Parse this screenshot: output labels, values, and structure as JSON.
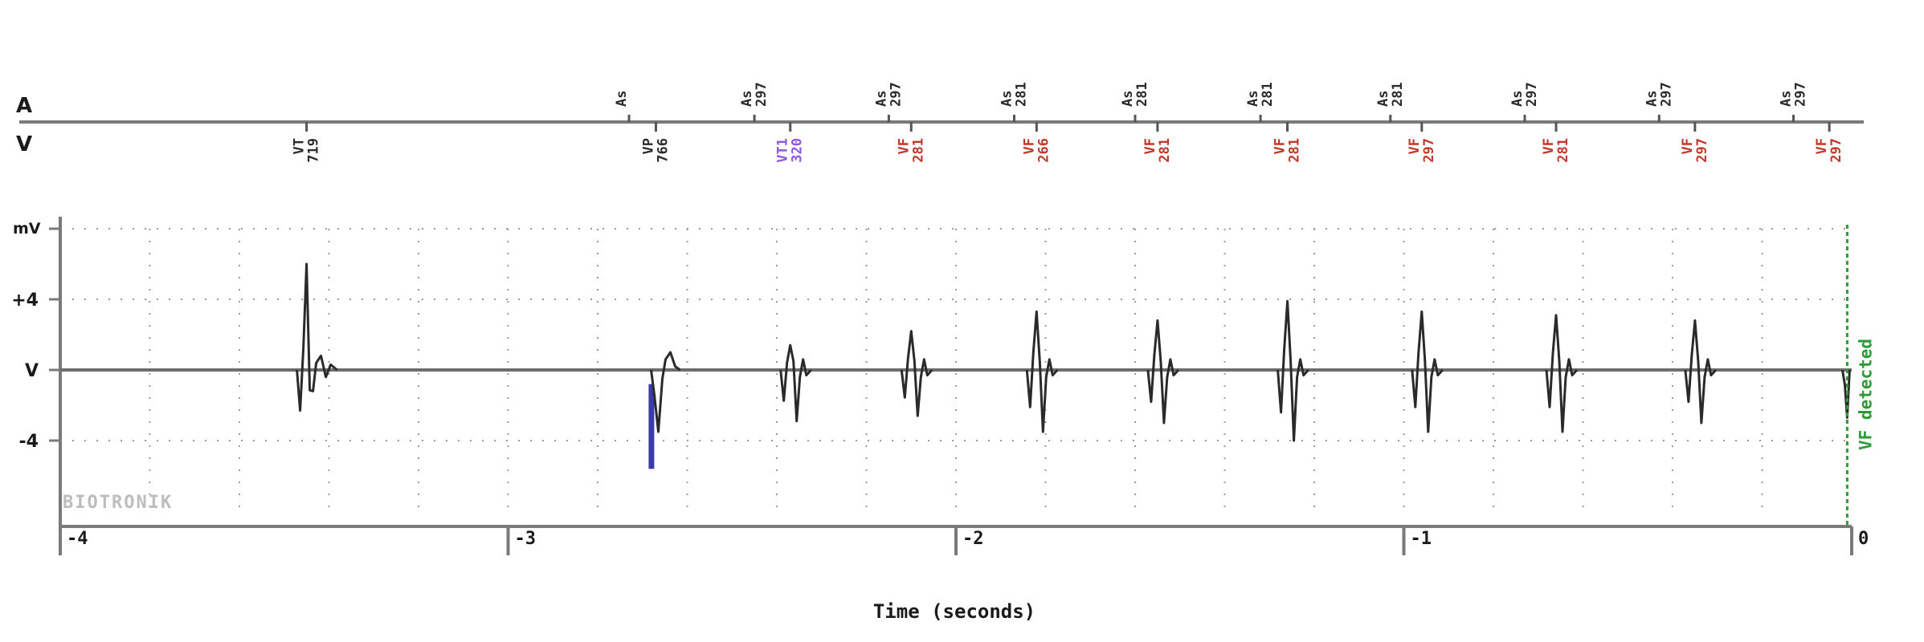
{
  "chart_data": {
    "type": "line",
    "channels": {
      "atrial": "A",
      "ventricular": "V"
    },
    "y_unit": "mV",
    "y_ticks": [
      "+4",
      "V",
      "-4"
    ],
    "y_values": [
      4,
      0,
      -4
    ],
    "xlabel": "Time (seconds)",
    "xlim": [
      -4,
      0
    ],
    "x_ticks": [
      -4,
      -3,
      -2,
      -1,
      0
    ],
    "x_tick_labels": [
      "-4",
      "-3",
      "-2",
      "-1",
      "0"
    ],
    "grid": true,
    "atrial_markers": [
      {
        "t": -2.73,
        "label": "As",
        "interval": ""
      },
      {
        "t": -2.45,
        "label": "As",
        "interval": "297"
      },
      {
        "t": -2.15,
        "label": "As",
        "interval": "297"
      },
      {
        "t": -1.87,
        "label": "As",
        "interval": "281"
      },
      {
        "t": -1.6,
        "label": "As",
        "interval": "281"
      },
      {
        "t": -1.32,
        "label": "As",
        "interval": "281"
      },
      {
        "t": -1.03,
        "label": "As",
        "interval": "281"
      },
      {
        "t": -0.73,
        "label": "As",
        "interval": "297"
      },
      {
        "t": -0.43,
        "label": "As",
        "interval": "297"
      },
      {
        "t": -0.13,
        "label": "As",
        "interval": "297"
      }
    ],
    "ventricular_markers": [
      {
        "t": -3.45,
        "label": "VT",
        "interval": "719",
        "color": "#2b2b2b"
      },
      {
        "t": -2.67,
        "label": "VP",
        "interval": "766",
        "color": "#2b2b2b"
      },
      {
        "t": -2.37,
        "label": "VT1",
        "interval": "320",
        "color": "#8f55e0"
      },
      {
        "t": -2.1,
        "label": "VF",
        "interval": "281",
        "color": "#c0392b"
      },
      {
        "t": -1.82,
        "label": "VF",
        "interval": "266",
        "color": "#c0392b"
      },
      {
        "t": -1.55,
        "label": "VF",
        "interval": "281",
        "color": "#c0392b"
      },
      {
        "t": -1.26,
        "label": "VF",
        "interval": "281",
        "color": "#c0392b"
      },
      {
        "t": -0.96,
        "label": "VF",
        "interval": "297",
        "color": "#c0392b"
      },
      {
        "t": -0.66,
        "label": "VF",
        "interval": "281",
        "color": "#c0392b"
      },
      {
        "t": -0.35,
        "label": "VF",
        "interval": "297",
        "color": "#c0392b"
      },
      {
        "t": -0.05,
        "label": "VF",
        "interval": "297",
        "color": "#c0392b"
      }
    ],
    "ventricular_egm_deflections": [
      {
        "t": -3.45,
        "peak_mV": 6.0,
        "trough_mV": -2.3
      },
      {
        "t": -2.67,
        "peak_mV": 1.0,
        "trough_mV": -3.5
      },
      {
        "t": -2.37,
        "peak_mV": 1.4,
        "trough_mV": -2.9
      },
      {
        "t": -2.1,
        "peak_mV": 2.2,
        "trough_mV": -2.6
      },
      {
        "t": -1.82,
        "peak_mV": 3.3,
        "trough_mV": -3.5
      },
      {
        "t": -1.55,
        "peak_mV": 2.8,
        "trough_mV": -3.0
      },
      {
        "t": -1.26,
        "peak_mV": 3.9,
        "trough_mV": -4.0
      },
      {
        "t": -0.96,
        "peak_mV": 3.3,
        "trough_mV": -3.5
      },
      {
        "t": -0.66,
        "peak_mV": 3.1,
        "trough_mV": -3.5
      },
      {
        "t": -0.35,
        "peak_mV": 2.8,
        "trough_mV": -3.0
      },
      {
        "t": -0.01,
        "peak_mV": 0.0,
        "trough_mV": -2.7
      }
    ],
    "pacing_pulse": {
      "t": -2.68,
      "from_mV": -0.8,
      "to_mV": -5.6
    },
    "detection_annotation": {
      "t": -0.01,
      "label": "VF detected",
      "color": "#2e9b3a"
    },
    "logo": "BIOTRONIK",
    "colors": {
      "trace": "#2a2a2a",
      "axis": "#7a7a7a",
      "grid": "#9a9a9a",
      "pacing": "#3a3aa8",
      "vf": "#c0392b",
      "vt1": "#8f55e0",
      "detected": "#2e9b3a",
      "logo": "#bdbdbd"
    }
  }
}
